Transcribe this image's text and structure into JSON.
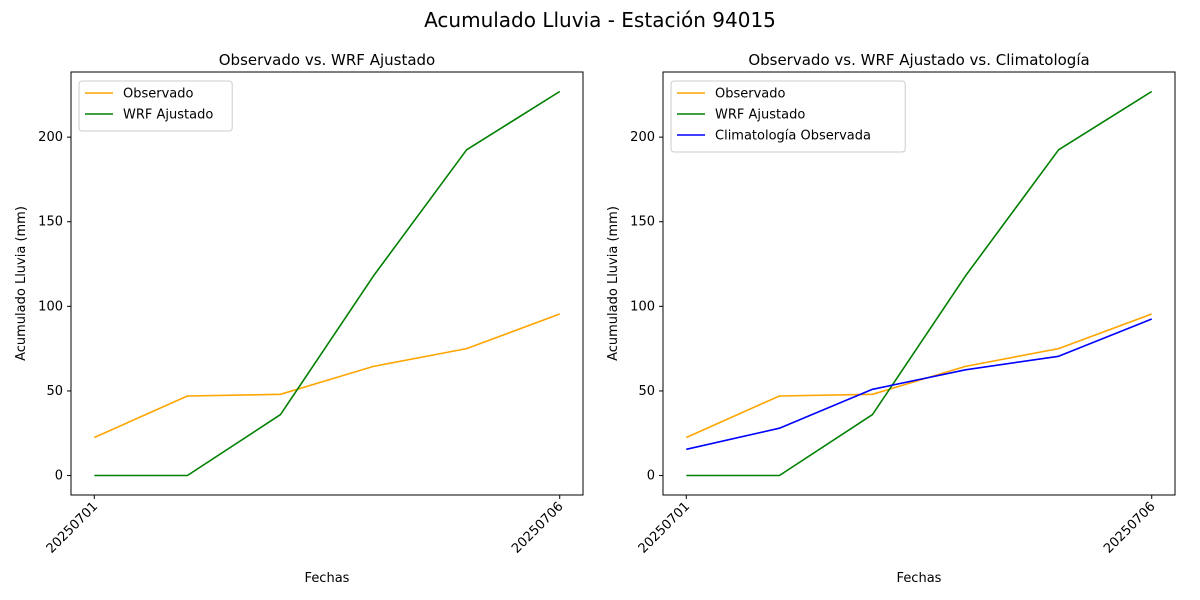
{
  "figure": {
    "suptitle": "Acumulado Lluvia - Estación 94015"
  },
  "colors": {
    "observado": "#ffa500",
    "wrf": "#008000",
    "climatologia": "#0000ff",
    "axis": "#000000",
    "legend_border": "#cccccc"
  },
  "chart_data": [
    {
      "type": "line",
      "title": "Observado vs. WRF Ajustado",
      "xlabel": "Fechas",
      "ylabel": "Acumulado Lluvia (mm)",
      "x": [
        1,
        2,
        3,
        4,
        5,
        6
      ],
      "xticks": [
        1,
        6
      ],
      "xtick_labels": [
        "20250701",
        "20250706"
      ],
      "xlim": [
        0.75,
        6.25
      ],
      "ylim": [
        -11.5,
        238.5
      ],
      "yticks": [
        0,
        50,
        100,
        150,
        200
      ],
      "grid": false,
      "legend_loc": "upper left",
      "series": [
        {
          "name": "Observado",
          "color_key": "observado",
          "values": [
            22.5,
            47.0,
            48.0,
            64.5,
            75.0,
            95.5
          ]
        },
        {
          "name": "WRF Ajustado",
          "color_key": "wrf",
          "values": [
            0,
            0,
            36.0,
            118.0,
            192.5,
            227.0
          ]
        }
      ]
    },
    {
      "type": "line",
      "title": "Observado vs. WRF Ajustado vs. Climatología",
      "xlabel": "Fechas",
      "ylabel": "Acumulado Lluvia (mm)",
      "x": [
        1,
        2,
        3,
        4,
        5,
        6
      ],
      "xticks": [
        1,
        6
      ],
      "xtick_labels": [
        "20250701",
        "20250706"
      ],
      "xlim": [
        0.75,
        6.25
      ],
      "ylim": [
        -11.5,
        238.5
      ],
      "yticks": [
        0,
        50,
        100,
        150,
        200
      ],
      "grid": false,
      "legend_loc": "upper left",
      "series": [
        {
          "name": "Observado",
          "color_key": "observado",
          "values": [
            22.5,
            47.0,
            48.0,
            64.5,
            75.0,
            95.5
          ]
        },
        {
          "name": "WRF Ajustado",
          "color_key": "wrf",
          "values": [
            0,
            0,
            36.0,
            118.0,
            192.5,
            227.0
          ]
        },
        {
          "name": "Climatología Observada",
          "color_key": "climatologia",
          "values": [
            15.5,
            28.0,
            51.0,
            62.5,
            70.5,
            92.5
          ]
        }
      ]
    }
  ]
}
